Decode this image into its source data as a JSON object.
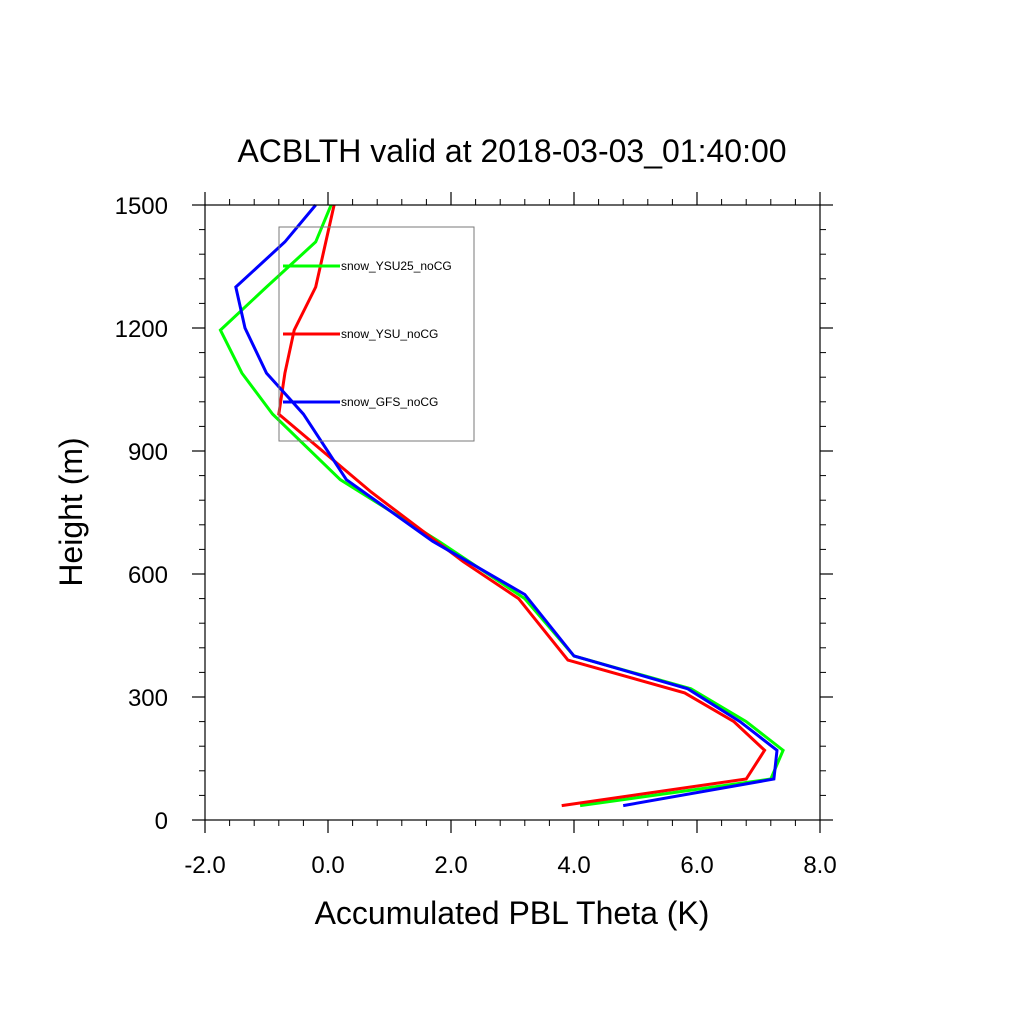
{
  "chart_data": {
    "type": "line",
    "title": "ACBLTH valid at 2018-03-03_01:40:00",
    "xlabel": "Accumulated PBL Theta (K)",
    "ylabel": "Height (m)",
    "xlim": [
      -2.0,
      8.0
    ],
    "ylim": [
      0,
      1500
    ],
    "xticks": [
      -2.0,
      0.0,
      2.0,
      4.0,
      6.0,
      8.0
    ],
    "xtick_labels": [
      "-2.0",
      "0.0",
      "2.0",
      "4.0",
      "6.0",
      "8.0"
    ],
    "yticks": [
      0,
      300,
      600,
      900,
      1200,
      1500
    ],
    "ytick_labels": [
      "0",
      "300",
      "600",
      "900",
      "1200",
      "1500"
    ],
    "grid": false,
    "legend_position": "top-left",
    "series": [
      {
        "name": "snow_YSU25_noCG",
        "color": "#00ff00",
        "x": [
          4.1,
          7.2,
          7.4,
          6.8,
          5.9,
          4.0,
          3.2,
          1.8,
          0.2,
          -0.9,
          -1.4,
          -1.75,
          -1.0,
          -0.2,
          0.05
        ],
        "y": [
          35,
          100,
          170,
          240,
          320,
          400,
          540,
          680,
          830,
          990,
          1090,
          1195,
          1300,
          1410,
          1500
        ]
      },
      {
        "name": "snow_YSU_noCG",
        "color": "#ff0000",
        "x": [
          3.8,
          6.8,
          7.1,
          6.6,
          5.8,
          3.9,
          3.1,
          2.2,
          0.7,
          -0.8,
          -0.7,
          -0.55,
          -0.2,
          0.1
        ],
        "y": [
          35,
          100,
          170,
          240,
          310,
          390,
          540,
          630,
          800,
          990,
          1090,
          1195,
          1300,
          1500
        ]
      },
      {
        "name": "snow_GFS_noCG",
        "color": "#0000ff",
        "x": [
          4.8,
          7.25,
          7.3,
          6.7,
          5.85,
          4.0,
          3.2,
          1.7,
          0.3,
          -0.4,
          -1.0,
          -1.35,
          -1.5,
          -0.7,
          -0.2
        ],
        "y": [
          35,
          100,
          170,
          240,
          320,
          400,
          550,
          680,
          830,
          990,
          1090,
          1200,
          1300,
          1410,
          1500
        ]
      }
    ]
  }
}
